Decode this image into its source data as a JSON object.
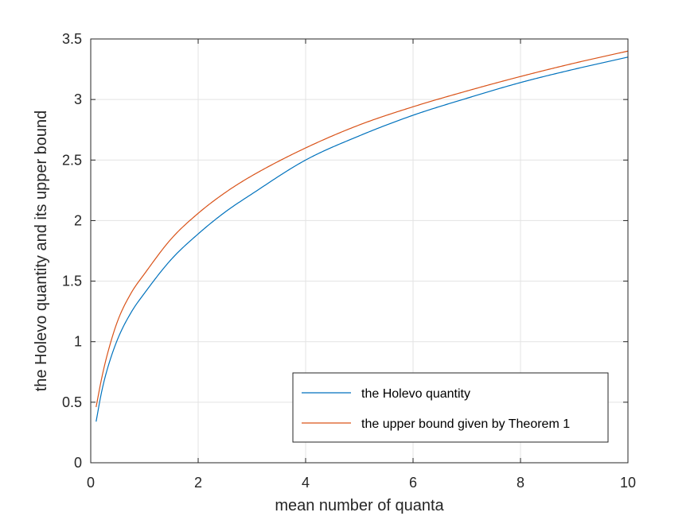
{
  "chart_data": {
    "type": "line",
    "title": "",
    "xlabel": "mean number of quanta",
    "ylabel": "the Holevo quantity and its upper bound",
    "xlim": [
      0,
      10
    ],
    "ylim": [
      0,
      3.5
    ],
    "xticks": [
      0,
      2,
      4,
      6,
      8,
      10
    ],
    "xtick_labels": [
      "0",
      "2",
      "4",
      "6",
      "8",
      "10"
    ],
    "yticks": [
      0,
      0.5,
      1,
      1.5,
      2,
      2.5,
      3,
      3.5
    ],
    "ytick_labels": [
      "0",
      "0.5",
      "1",
      "1.5",
      "2",
      "2.5",
      "3",
      "3.5"
    ],
    "grid": true,
    "legend_position": "bottom-right",
    "x": [
      0.1,
      0.2,
      0.3,
      0.5,
      0.75,
      1,
      1.5,
      2,
      2.5,
      3,
      4,
      5,
      6,
      7,
      8,
      9,
      10
    ],
    "series": [
      {
        "name": "the Holevo quantity",
        "color": "#0072BD",
        "values": [
          0.34,
          0.58,
          0.76,
          1.02,
          1.24,
          1.4,
          1.68,
          1.89,
          2.07,
          2.22,
          2.5,
          2.7,
          2.87,
          3.01,
          3.14,
          3.25,
          3.35
        ]
      },
      {
        "name": "the upper bound given by Theorem 1",
        "color": "#D95319",
        "values": [
          0.46,
          0.69,
          0.88,
          1.17,
          1.4,
          1.56,
          1.85,
          2.06,
          2.23,
          2.37,
          2.6,
          2.79,
          2.94,
          3.07,
          3.19,
          3.3,
          3.4
        ]
      }
    ]
  }
}
